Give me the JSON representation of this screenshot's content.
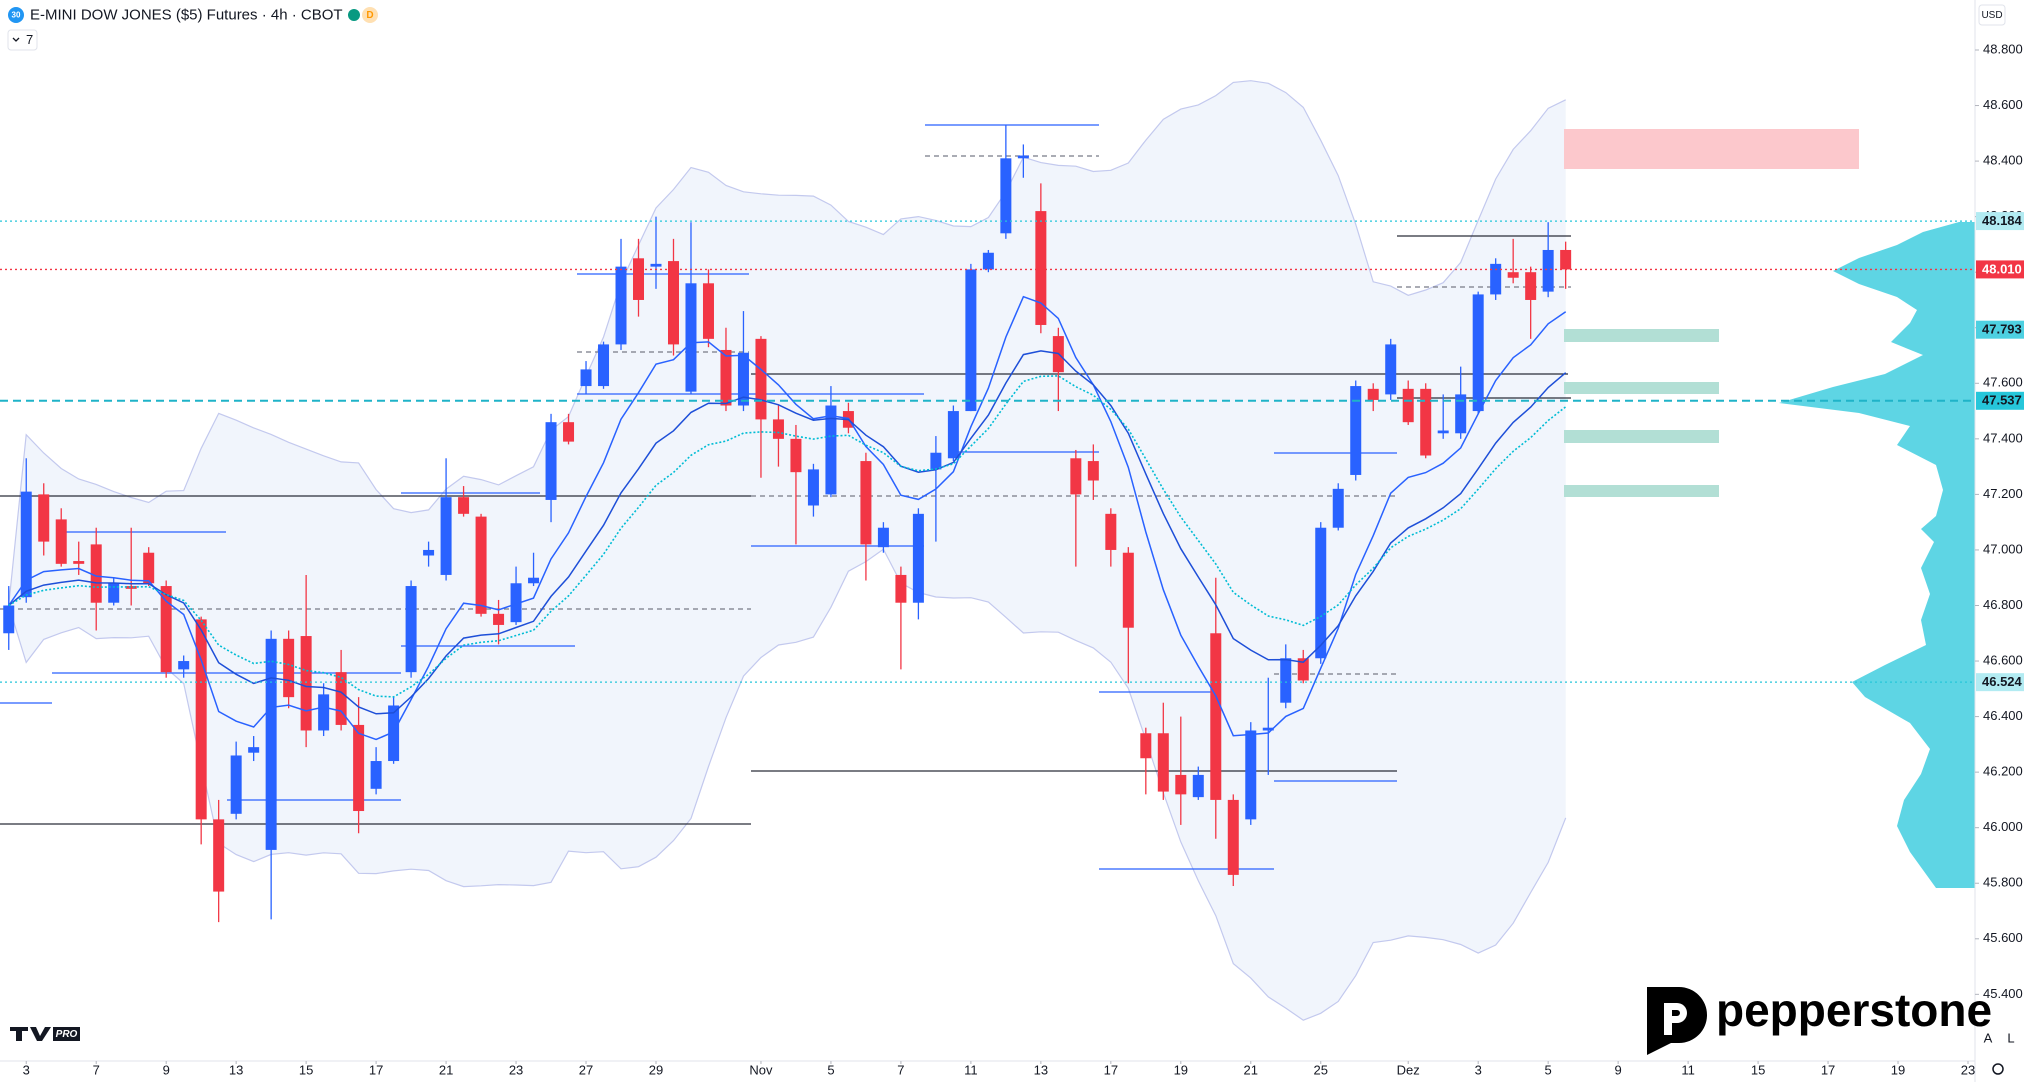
{
  "chart_data": {
    "type": "candlestick",
    "title": "E-MINI DOW JONES ($5) Futures · 4h · CBOT",
    "symbol_icon": "30",
    "badge": "D",
    "indicator_count": "7",
    "currency": "USD",
    "up_color": "#2962ff",
    "down_color": "#f23645",
    "x": [
      0,
      1,
      2,
      3,
      4,
      5,
      6,
      7,
      8,
      9,
      10,
      11,
      12,
      13,
      14,
      15,
      16,
      17,
      18,
      19,
      20,
      21,
      22,
      23,
      24,
      25,
      26,
      27,
      28,
      29,
      30,
      31,
      32,
      33,
      34,
      35,
      36,
      37,
      38,
      39,
      40,
      41,
      42,
      43,
      44,
      45,
      46,
      47,
      48,
      49,
      50,
      51,
      52,
      53,
      54,
      55,
      56,
      57,
      58,
      59,
      60,
      61,
      62,
      63,
      64,
      65,
      66,
      67,
      68,
      69,
      70,
      71,
      72,
      73,
      74,
      75,
      76,
      77,
      78,
      79,
      80,
      81,
      82,
      83,
      84,
      85,
      86,
      87,
      88,
      89
    ],
    "open": [
      46.7,
      46.83,
      47.2,
      47.11,
      46.96,
      47.02,
      46.81,
      46.87,
      46.99,
      46.87,
      46.57,
      46.75,
      46.03,
      46.05,
      46.27,
      45.92,
      46.68,
      46.69,
      46.35,
      46.56,
      46.37,
      46.14,
      46.24,
      46.56,
      46.98,
      46.91,
      47.19,
      47.12,
      46.77,
      46.74,
      46.88,
      47.18,
      47.46,
      47.59,
      47.59,
      47.74,
      48.05,
      48.02,
      48.04,
      47.57,
      47.96,
      47.72,
      47.52,
      47.76,
      47.47,
      47.4,
      47.16,
      47.2,
      47.5,
      47.32,
      47.01,
      46.91,
      46.81,
      47.29,
      47.33,
      47.5,
      48.01,
      48.14,
      48.41,
      48.22,
      47.77,
      47.33,
      47.32,
      47.13,
      46.99,
      46.34,
      46.34,
      46.19,
      46.11,
      46.7,
      46.1,
      46.03,
      46.35,
      46.45,
      46.61,
      46.61,
      47.08,
      47.27,
      47.58,
      47.56,
      47.58,
      47.58,
      47.42,
      47.42,
      47.5,
      47.92,
      48.0,
      48.0,
      47.93,
      48.08
    ],
    "high": [
      46.87,
      47.33,
      47.24,
      47.15,
      47.03,
      47.08,
      46.9,
      47.08,
      47.01,
      46.89,
      46.62,
      46.76,
      46.1,
      46.31,
      46.33,
      46.71,
      46.71,
      46.91,
      46.52,
      46.64,
      46.47,
      46.29,
      46.47,
      46.89,
      47.03,
      47.33,
      47.23,
      47.13,
      46.82,
      46.94,
      46.99,
      47.49,
      47.49,
      47.68,
      47.75,
      48.12,
      48.12,
      48.2,
      48.12,
      48.18,
      48.01,
      47.8,
      47.86,
      47.77,
      47.52,
      47.45,
      47.31,
      47.59,
      47.53,
      47.35,
      47.1,
      46.94,
      47.15,
      47.41,
      47.52,
      48.03,
      48.08,
      48.53,
      48.46,
      48.32,
      47.8,
      47.36,
      47.38,
      47.15,
      47.01,
      46.36,
      46.45,
      46.4,
      46.22,
      46.9,
      46.12,
      46.38,
      46.54,
      46.66,
      46.64,
      47.1,
      47.24,
      47.61,
      47.6,
      47.76,
      47.61,
      47.6,
      47.56,
      47.66,
      47.93,
      48.05,
      48.12,
      48.02,
      48.18,
      48.11
    ],
    "low": [
      46.64,
      46.81,
      46.98,
      46.94,
      46.91,
      46.71,
      46.8,
      46.8,
      46.87,
      46.54,
      46.54,
      45.94,
      45.66,
      46.03,
      46.24,
      45.67,
      46.43,
      46.29,
      46.33,
      46.35,
      45.98,
      46.12,
      46.23,
      46.54,
      46.94,
      46.89,
      47.12,
      46.76,
      46.66,
      46.73,
      46.87,
      47.1,
      47.38,
      47.56,
      47.58,
      47.72,
      47.84,
      47.94,
      47.7,
      47.56,
      47.73,
      47.5,
      47.5,
      47.26,
      47.3,
      47.02,
      47.12,
      47.19,
      47.42,
      46.89,
      46.99,
      46.57,
      46.75,
      47.03,
      47.32,
      47.5,
      48.0,
      48.12,
      48.34,
      47.78,
      47.5,
      46.94,
      47.18,
      46.94,
      46.52,
      46.12,
      46.1,
      46.01,
      46.1,
      45.96,
      45.79,
      46.01,
      46.19,
      46.43,
      46.52,
      46.59,
      47.07,
      47.25,
      47.5,
      47.54,
      47.45,
      47.33,
      47.4,
      47.4,
      47.49,
      47.9,
      47.96,
      47.76,
      47.91,
      47.94
    ],
    "close": [
      46.8,
      47.21,
      47.03,
      46.95,
      46.95,
      46.81,
      46.88,
      46.86,
      46.88,
      46.56,
      46.6,
      46.03,
      45.77,
      46.26,
      46.29,
      46.68,
      46.47,
      46.35,
      46.48,
      46.37,
      46.06,
      46.24,
      46.44,
      46.87,
      47.0,
      47.19,
      47.13,
      46.77,
      46.73,
      46.88,
      46.9,
      47.46,
      47.39,
      47.65,
      47.74,
      48.02,
      47.9,
      48.03,
      47.74,
      47.96,
      47.76,
      47.52,
      47.71,
      47.47,
      47.4,
      47.28,
      47.29,
      47.52,
      47.44,
      47.02,
      47.08,
      46.81,
      47.13,
      47.35,
      47.5,
      48.01,
      48.07,
      48.41,
      48.42,
      47.81,
      47.64,
      47.2,
      47.25,
      47.0,
      46.72,
      46.25,
      46.13,
      46.12,
      46.19,
      46.1,
      45.83,
      46.35,
      46.36,
      46.61,
      46.53,
      47.08,
      47.22,
      47.59,
      47.54,
      47.74,
      47.46,
      47.34,
      47.43,
      47.56,
      47.92,
      48.03,
      47.98,
      47.9,
      48.08,
      48.01
    ],
    "xlim": [
      -0.5,
      112.4
    ],
    "ylim": [
      45.16,
      48.98
    ],
    "yticks": [
      {
        "value": 48.8,
        "label": "48.800"
      },
      {
        "value": 48.6,
        "label": "48.600"
      },
      {
        "value": 48.4,
        "label": "48.400"
      },
      {
        "value": 48.2,
        "label": "48.200"
      },
      {
        "value": 48.0,
        "label": "48.000"
      },
      {
        "value": 47.8,
        "label": "47.800"
      },
      {
        "value": 47.6,
        "label": "47.600"
      },
      {
        "value": 47.4,
        "label": "47.400"
      },
      {
        "value": 47.2,
        "label": "47.200"
      },
      {
        "value": 47.0,
        "label": "47.000"
      },
      {
        "value": 46.8,
        "label": "46.800"
      },
      {
        "value": 46.6,
        "label": "46.600"
      },
      {
        "value": 46.4,
        "label": "46.400"
      },
      {
        "value": 46.2,
        "label": "46.200"
      },
      {
        "value": 46.0,
        "label": "46.000"
      },
      {
        "value": 45.8,
        "label": "45.800"
      },
      {
        "value": 45.6,
        "label": "45.600"
      },
      {
        "value": 45.4,
        "label": "45.400"
      }
    ],
    "xticks": [
      {
        "value": 1,
        "label": "3"
      },
      {
        "value": 5,
        "label": "7"
      },
      {
        "value": 9,
        "label": "9"
      },
      {
        "value": 13,
        "label": "13"
      },
      {
        "value": 17,
        "label": "15"
      },
      {
        "value": 21,
        "label": "17"
      },
      {
        "value": 25,
        "label": "21"
      },
      {
        "value": 29,
        "label": "23"
      },
      {
        "value": 33,
        "label": "27"
      },
      {
        "value": 37,
        "label": "29"
      },
      {
        "value": 43,
        "label": "Nov"
      },
      {
        "value": 47,
        "label": "5"
      },
      {
        "value": 51,
        "label": "7"
      },
      {
        "value": 55,
        "label": "11"
      },
      {
        "value": 59,
        "label": "13"
      },
      {
        "value": 63,
        "label": "17"
      },
      {
        "value": 67,
        "label": "19"
      },
      {
        "value": 71,
        "label": "21"
      },
      {
        "value": 75,
        "label": "25"
      },
      {
        "value": 80,
        "label": "Dez"
      },
      {
        "value": 84,
        "label": "3"
      },
      {
        "value": 88,
        "label": "5"
      },
      {
        "value": 92,
        "label": "9"
      },
      {
        "value": 96,
        "label": "11"
      },
      {
        "value": 100,
        "label": "15"
      },
      {
        "value": 104,
        "label": "17"
      },
      {
        "value": 108,
        "label": "19"
      },
      {
        "value": 112,
        "label": "23"
      }
    ],
    "price_lines": [
      {
        "value": 48.184,
        "label": "48.184",
        "color": "#b2ebf2",
        "text_color": "#131722",
        "line": "dotted",
        "line_color": "#26c6da"
      },
      {
        "value": 48.01,
        "label": "48.010",
        "color": "#f23645",
        "text_color": "#ffffff",
        "line": "dotted",
        "line_color": "#f23645"
      },
      {
        "value": 47.793,
        "label": "47.793",
        "color": "#4dd0e1",
        "text_color": "#131722",
        "line": "none"
      },
      {
        "value": 47.537,
        "label": "47.537",
        "color": "#26c6da",
        "text_color": "#131722",
        "line": "dashed",
        "line_color": "#1fb3c8"
      },
      {
        "value": 46.524,
        "label": "46.524",
        "color": "#b2ebf2",
        "text_color": "#131722",
        "line": "dotted",
        "line_color": "#26c6da"
      }
    ]
  },
  "branding": {
    "logo": "pepperstone",
    "badge": "PRO"
  },
  "controls": {
    "auto": "A",
    "log": "L"
  }
}
